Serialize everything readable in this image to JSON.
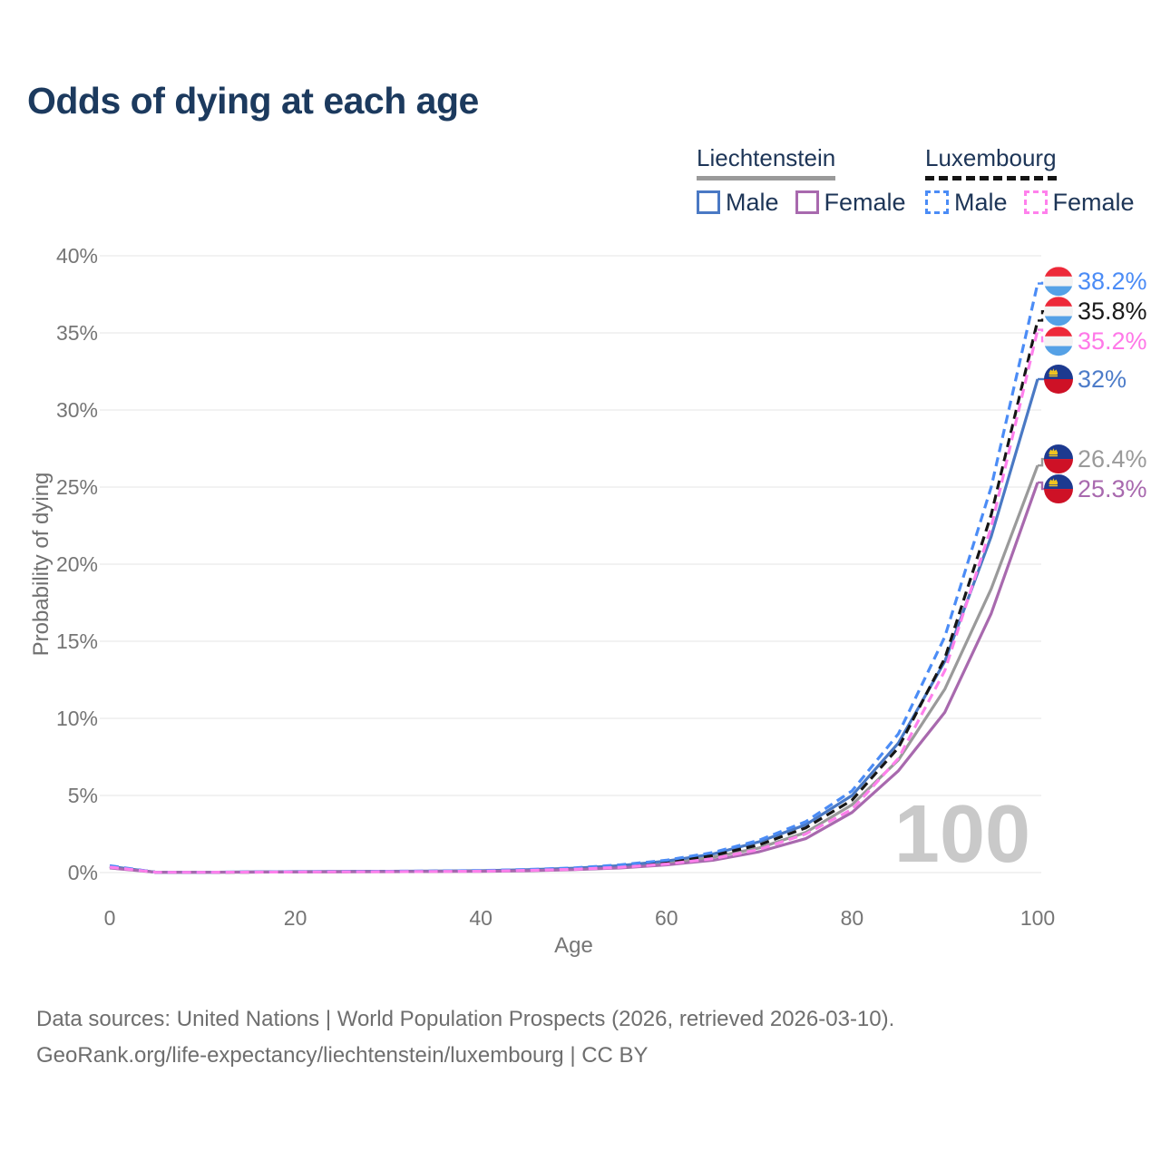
{
  "title": "Odds of dying at each age",
  "legend": {
    "groups": [
      {
        "name": "Liechtenstein",
        "line_style": "solid",
        "underline_color": "#9a9a9a",
        "items": [
          {
            "label": "Male",
            "color": "#4a79c4",
            "dashed": false
          },
          {
            "label": "Female",
            "color": "#a869ae",
            "dashed": false
          }
        ]
      },
      {
        "name": "Luxembourg",
        "line_style": "dashed",
        "underline_color": "#141414",
        "items": [
          {
            "label": "Male",
            "color": "#4b8cf6",
            "dashed": true
          },
          {
            "label": "Female",
            "color": "#ff80ec",
            "dashed": true
          }
        ]
      }
    ]
  },
  "chart_data": {
    "type": "line",
    "title": "Odds of dying at each age",
    "xlabel": "Age",
    "ylabel": "Probability of dying",
    "xlim": [
      0,
      100
    ],
    "ylim": [
      0,
      40
    ],
    "grid": true,
    "legend_position": "top-right",
    "watermark": "100",
    "x": [
      0,
      5,
      10,
      15,
      20,
      25,
      30,
      35,
      40,
      45,
      50,
      55,
      60,
      65,
      70,
      75,
      80,
      85,
      90,
      95,
      100
    ],
    "xticks": [
      {
        "value": 0,
        "label": "0"
      },
      {
        "value": 20,
        "label": "20"
      },
      {
        "value": 40,
        "label": "40"
      },
      {
        "value": 60,
        "label": "60"
      },
      {
        "value": 80,
        "label": "80"
      },
      {
        "value": 100,
        "label": "100"
      }
    ],
    "yticks": [
      {
        "value": 0,
        "label": "0%"
      },
      {
        "value": 5,
        "label": "5%"
      },
      {
        "value": 10,
        "label": "10%"
      },
      {
        "value": 15,
        "label": "15%"
      },
      {
        "value": 20,
        "label": "20%"
      },
      {
        "value": 25,
        "label": "25%"
      },
      {
        "value": 30,
        "label": "30%"
      },
      {
        "value": 35,
        "label": "35%"
      },
      {
        "value": 40,
        "label": "40%"
      }
    ],
    "series": [
      {
        "name": "Liechtenstein Total",
        "country": "liechtenstein",
        "sex": "total",
        "color": "#9a9a9a",
        "label_color": "#9a9a9a",
        "dashed": false,
        "values": [
          0.35,
          0.02,
          0.02,
          0.03,
          0.05,
          0.06,
          0.07,
          0.08,
          0.1,
          0.15,
          0.23,
          0.38,
          0.6,
          1.0,
          1.6,
          2.6,
          4.4,
          7.3,
          11.9,
          18.4,
          26.4
        ],
        "end_value": 26.4,
        "end_label": "26.4%"
      },
      {
        "name": "Liechtenstein Male",
        "country": "liechtenstein",
        "sex": "male",
        "color": "#4a79c4",
        "label_color": "#4d7cc9",
        "dashed": false,
        "values": [
          0.4,
          0.02,
          0.02,
          0.04,
          0.06,
          0.07,
          0.08,
          0.1,
          0.12,
          0.18,
          0.28,
          0.45,
          0.75,
          1.2,
          2.0,
          3.1,
          5.0,
          8.4,
          13.7,
          21.8,
          32.0
        ],
        "end_value": 32,
        "end_label": "32%"
      },
      {
        "name": "Liechtenstein Female",
        "country": "liechtenstein",
        "sex": "female",
        "color": "#a869ae",
        "label_color": "#a869ae",
        "dashed": false,
        "values": [
          0.3,
          0.02,
          0.02,
          0.03,
          0.04,
          0.05,
          0.06,
          0.07,
          0.08,
          0.12,
          0.19,
          0.3,
          0.5,
          0.8,
          1.35,
          2.2,
          3.9,
          6.6,
          10.4,
          16.8,
          25.3
        ],
        "end_value": 25.3,
        "end_label": "25.3%"
      },
      {
        "name": "Luxembourg Total",
        "country": "luxembourg",
        "sex": "total",
        "color": "#161616",
        "label_color": "#1a1a1a",
        "dashed": true,
        "values": [
          0.4,
          0.02,
          0.02,
          0.03,
          0.05,
          0.06,
          0.07,
          0.09,
          0.11,
          0.17,
          0.26,
          0.42,
          0.68,
          1.1,
          1.8,
          2.9,
          4.7,
          8.1,
          13.9,
          23.2,
          35.8
        ],
        "end_value": 35.8,
        "end_label": "35.8%"
      },
      {
        "name": "Luxembourg Male",
        "country": "luxembourg",
        "sex": "male",
        "color": "#4b8cf6",
        "label_color": "#4b8cf6",
        "dashed": true,
        "values": [
          0.45,
          0.02,
          0.02,
          0.04,
          0.06,
          0.07,
          0.08,
          0.1,
          0.13,
          0.2,
          0.3,
          0.5,
          0.8,
          1.3,
          2.1,
          3.3,
          5.3,
          9.0,
          15.3,
          25.0,
          38.2
        ],
        "end_value": 38.2,
        "end_label": "38.2%"
      },
      {
        "name": "Luxembourg Female",
        "country": "luxembourg",
        "sex": "female",
        "color": "#ff80ec",
        "label_color": "#ff78e8",
        "dashed": true,
        "values": [
          0.35,
          0.02,
          0.02,
          0.03,
          0.04,
          0.05,
          0.06,
          0.07,
          0.09,
          0.14,
          0.21,
          0.34,
          0.55,
          0.9,
          1.5,
          2.5,
          4.1,
          7.4,
          13.1,
          22.4,
          35.2
        ],
        "end_value": 35.2,
        "end_label": "35.2%"
      }
    ],
    "flag_colors": {
      "luxembourg": {
        "top": "#ed2939",
        "middle": "#f3f3f3",
        "bottom": "#55a1e6"
      },
      "liechtenstein": {
        "top": "#1d3a90",
        "bottom": "#ce1126",
        "crown": "#f2c61f"
      }
    },
    "colors": {
      "grid": "#e9e9e9",
      "axis_text": "#757575",
      "watermark": "#c9c9c9",
      "title_text": "#1c3a5e",
      "legend_text": "#1d3557",
      "footer_text": "#6e6e6e"
    }
  },
  "footer": {
    "line1": "Data sources: United Nations | World Population Prospects (2026, retrieved 2026-03-10).",
    "line2": "GeoRank.org/life-expectancy/liechtenstein/luxembourg | CC BY"
  }
}
